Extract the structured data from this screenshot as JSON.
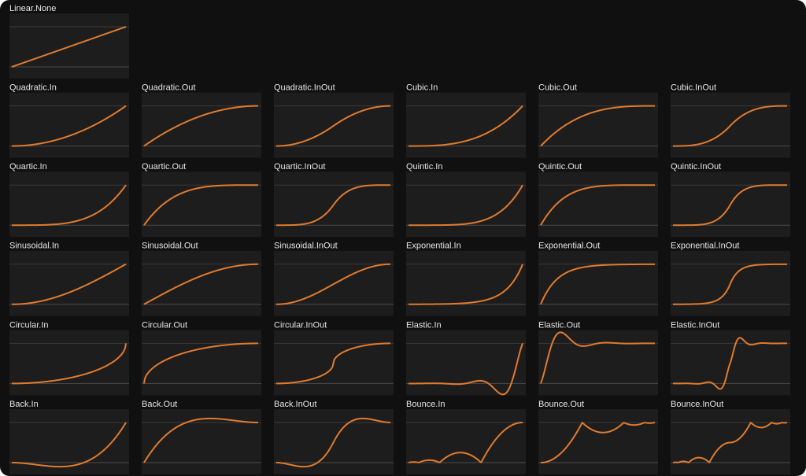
{
  "rows": [
    [
      "Linear.None"
    ],
    [
      "Quadratic.In",
      "Quadratic.Out",
      "Quadratic.InOut",
      "Cubic.In",
      "Cubic.Out",
      "Cubic.InOut"
    ],
    [
      "Quartic.In",
      "Quartic.Out",
      "Quartic.InOut",
      "Quintic.In",
      "Quintic.Out",
      "Quintic.InOut"
    ],
    [
      "Sinusoidal.In",
      "Sinusoidal.Out",
      "Sinusoidal.InOut",
      "Exponential.In",
      "Exponential.Out",
      "Exponential.InOut"
    ],
    [
      "Circular.In",
      "Circular.Out",
      "Circular.InOut",
      "Elastic.In",
      "Elastic.Out",
      "Elastic.InOut"
    ],
    [
      "Back.In",
      "Back.Out",
      "Back.InOut",
      "Bounce.In",
      "Bounce.Out",
      "Bounce.InOut"
    ]
  ]
}
